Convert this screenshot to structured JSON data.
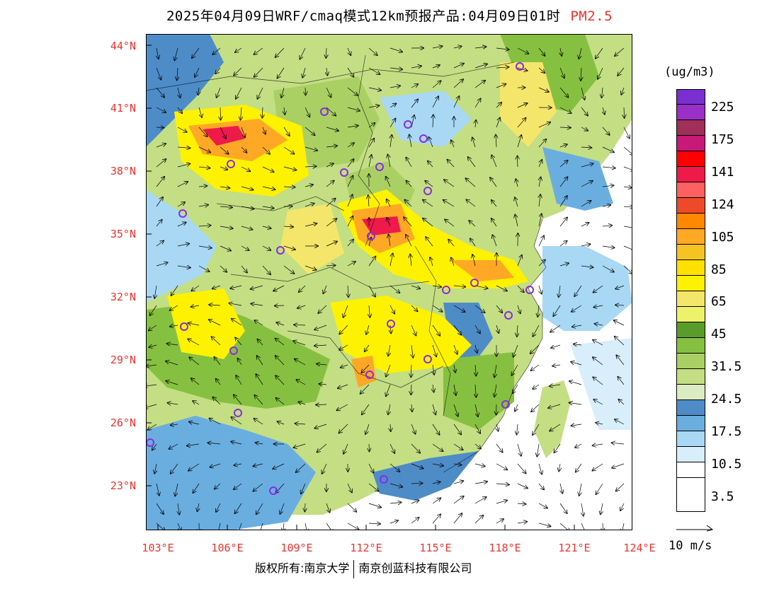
{
  "title": {
    "main": "2025年04月09日WRF/cmaq模式12km预报产品:04月09日01时",
    "pollutant": "PM2.5"
  },
  "axes": {
    "lat_labels": [
      "44°N",
      "41°N",
      "38°N",
      "35°N",
      "32°N",
      "29°N",
      "26°N",
      "23°N"
    ],
    "lon_labels": [
      "103°E",
      "106°E",
      "109°E",
      "112°E",
      "115°E",
      "118°E",
      "121°E",
      "124°E"
    ]
  },
  "colorbar": {
    "units": "(ug/m3)",
    "labels": [
      "225",
      "175",
      "141",
      "124",
      "105",
      "85",
      "65",
      "45",
      "31.5",
      "24.5",
      "17.5",
      "10.5",
      "3.5"
    ],
    "colors": [
      "#7b2fd0",
      "#9a30c8",
      "#a0305a",
      "#c8187a",
      "#ff0000",
      "#ee1a4a",
      "#ff6060",
      "#ee4a2a",
      "#ff8800",
      "#ffa826",
      "#f6c422",
      "#ffe000",
      "#fff200",
      "#f4e66a",
      "#eef26a",
      "#5a9c2a",
      "#86c040",
      "#aad064",
      "#c4de84",
      "#dcecc2",
      "#4e8cc8",
      "#6aaee0",
      "#a8d8f4",
      "#d8eefa",
      "#ffffff"
    ]
  },
  "reference_vector": {
    "label": "10 m/s"
  },
  "copyright": {
    "left": "版权所有:南京大学",
    "right": "南京创蓝科技有限公司"
  },
  "map_colors": {
    "ocean": "#ffffff",
    "clean_blue": "#4e8cc8",
    "light_blue": "#a8d8f4",
    "green": "#86c040",
    "light_green": "#c4de84",
    "yellow": "#fff200",
    "orange": "#ffa826",
    "red": "#ee1a4a",
    "marker": "#8a2be2"
  }
}
